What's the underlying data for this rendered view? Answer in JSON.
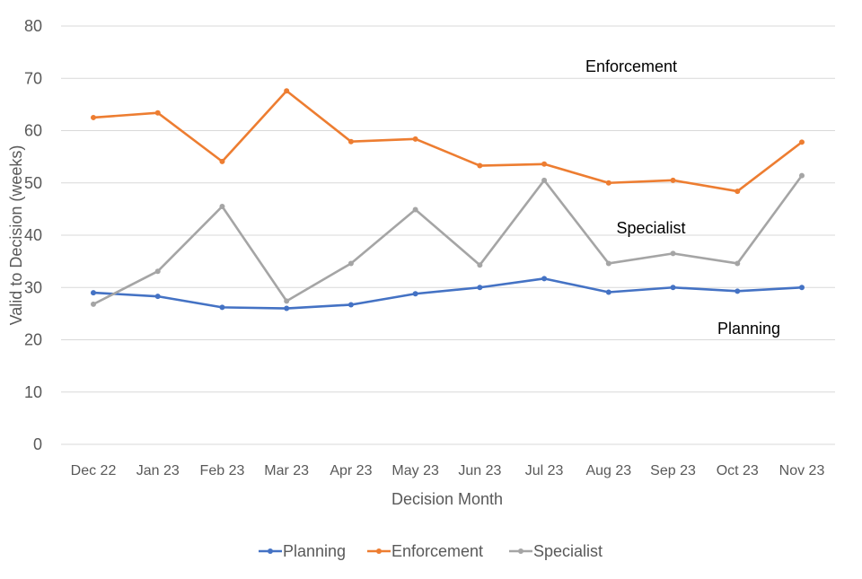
{
  "chart_data": {
    "type": "line",
    "title": "",
    "xlabel": "Decision Month",
    "ylabel": "Valid to Decision (weeks)",
    "ylim": [
      0,
      80
    ],
    "yticks": [
      0,
      10,
      20,
      30,
      40,
      50,
      60,
      70,
      80
    ],
    "grid": true,
    "legend_position": "bottom",
    "categories": [
      "Dec 22",
      "Jan 23",
      "Feb 23",
      "Mar 23",
      "Apr 23",
      "May 23",
      "Jun 23",
      "Jul 23",
      "Aug 23",
      "Sep 23",
      "Oct 23",
      "Nov 23"
    ],
    "series": [
      {
        "name": "Planning",
        "color": "#4472C4",
        "values": [
          29.0,
          28.3,
          26.2,
          26.0,
          26.7,
          28.8,
          30.0,
          31.7,
          29.1,
          30.0,
          29.3,
          30.0
        ]
      },
      {
        "name": "Enforcement",
        "color": "#ED7D31",
        "values": [
          62.5,
          63.4,
          54.1,
          67.6,
          57.9,
          58.4,
          53.3,
          53.6,
          50.0,
          50.5,
          48.4,
          57.8
        ]
      },
      {
        "name": "Specialist",
        "color": "#A5A5A5",
        "values": [
          26.8,
          33.1,
          45.5,
          27.4,
          34.6,
          44.9,
          34.3,
          50.5,
          34.6,
          36.5,
          34.6,
          51.4
        ]
      }
    ],
    "annotations": [
      {
        "text": "Enforcement",
        "series": "Enforcement"
      },
      {
        "text": "Specialist",
        "series": "Specialist"
      },
      {
        "text": "Planning",
        "series": "Planning"
      }
    ]
  }
}
